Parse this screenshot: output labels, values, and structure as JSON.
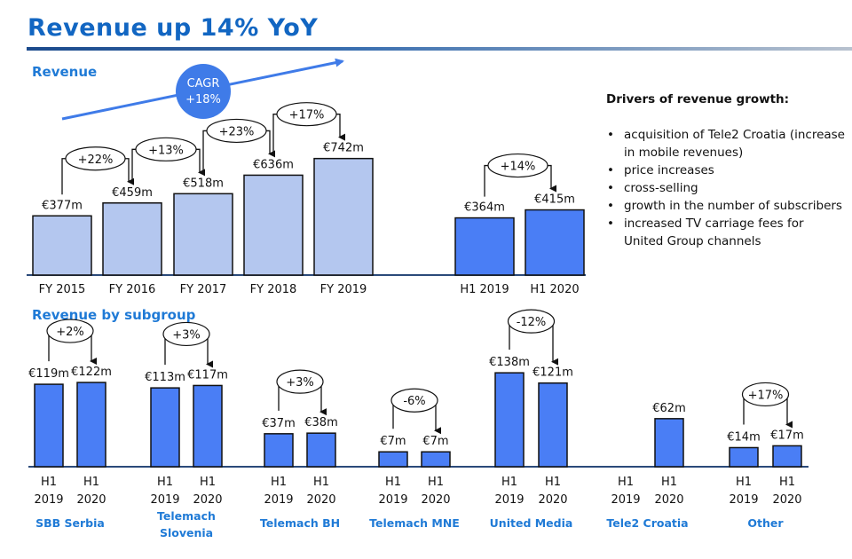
{
  "title": "Revenue up 14% YoY",
  "cagr": {
    "label": "CAGR",
    "value": "+18%"
  },
  "drivers": {
    "heading": "Drivers of revenue growth:",
    "items": [
      "acquisition of Tele2 Croatia (increase in mobile revenues)",
      "price increases",
      "cross-selling",
      "growth in the number of subscribers",
      "increased TV carriage fees for United Group channels"
    ]
  },
  "colors": {
    "title": "#1266c2",
    "section": "#1f7ad6",
    "fy_bar": "#b4c7ef",
    "h1_bar": "#4a7ef5",
    "cagr": "#3f7be8"
  },
  "chart_data": [
    {
      "type": "bar",
      "title": "Revenue",
      "categories": [
        "FY 2015",
        "FY 2016",
        "FY 2017",
        "FY 2018",
        "FY 2019",
        "H1 2019",
        "H1 2020"
      ],
      "values": [
        377,
        459,
        518,
        636,
        742,
        364,
        415
      ],
      "data_labels": [
        "€377m",
        "€459m",
        "€518m",
        "€636m",
        "€742m",
        "€364m",
        "€415m"
      ],
      "growth": [
        {
          "from": 0,
          "to": 1,
          "label": "+22%"
        },
        {
          "from": 1,
          "to": 2,
          "label": "+13%"
        },
        {
          "from": 2,
          "to": 3,
          "label": "+23%"
        },
        {
          "from": 3,
          "to": 4,
          "label": "+17%"
        },
        {
          "from": 5,
          "to": 6,
          "label": "+14%"
        }
      ],
      "unit": "€m",
      "grid": false
    },
    {
      "type": "bar",
      "title": "Revenue by subgroup",
      "groups": [
        {
          "name": "SBB Serbia",
          "values": [
            119,
            122
          ],
          "labels": [
            "€119m",
            "€122m"
          ],
          "growth": "+2%"
        },
        {
          "name": "Telemach Slovenia",
          "values": [
            113,
            117
          ],
          "labels": [
            "€113m",
            "€117m"
          ],
          "growth": "+3%"
        },
        {
          "name": "Telemach BH",
          "values": [
            37,
            38
          ],
          "labels": [
            "€37m",
            "€38m"
          ],
          "growth": "+3%"
        },
        {
          "name": "Telemach MNE",
          "values": [
            7,
            7
          ],
          "labels": [
            "€7m",
            "€7m"
          ],
          "growth": "-6%"
        },
        {
          "name": "United Media",
          "values": [
            138,
            121
          ],
          "labels": [
            "€138m",
            "€121m"
          ],
          "growth": "-12%"
        },
        {
          "name": "Tele2 Croatia",
          "values": [
            null,
            62
          ],
          "labels": [
            "",
            "€62m"
          ],
          "growth": ""
        },
        {
          "name": "Other",
          "values": [
            14,
            17
          ],
          "labels": [
            "€14m",
            "€17m"
          ],
          "growth": "+17%"
        }
      ],
      "categories": [
        [
          "H1",
          "2019"
        ],
        [
          "H1",
          "2020"
        ]
      ],
      "unit": "€m",
      "grid": false
    }
  ]
}
